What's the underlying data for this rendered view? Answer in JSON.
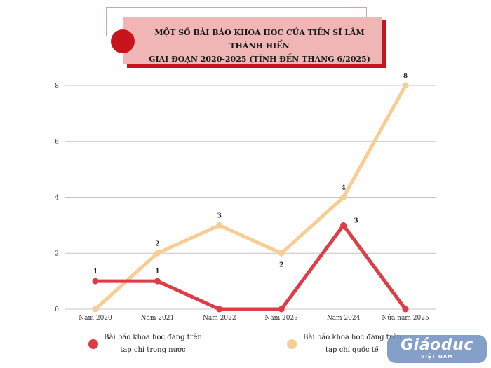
{
  "title": {
    "line1": "MỘT SỐ BÀI BÁO KHOA HỌC CỦA TIẾN SĨ LÂM THÀNH HIỂN",
    "line2": "GIAI ĐOẠN 2020-2025 (TÍNH ĐẾN THÁNG 6/2025)"
  },
  "colors": {
    "domestic": "#de3c47",
    "international": "#f7cd94",
    "grid": "#c4c4c4",
    "title_bg": "#f0b6b6",
    "accent": "#c7141d"
  },
  "chart_data": {
    "type": "line",
    "title": "MỘT SỐ BÀI BÁO KHOA HỌC CỦA TIẾN SĨ LÂM THÀNH HIỂN GIAI ĐOẠN 2020-2025 (TÍNH ĐẾN THÁNG 6/2025)",
    "categories": [
      "Năm 2020",
      "Năm 2021",
      "Năm 2022",
      "Năm 2023",
      "Năm 2024",
      "Nửa năm 2025"
    ],
    "ylim": [
      0,
      8
    ],
    "yticks": [
      0,
      2,
      4,
      6,
      8
    ],
    "grid": true,
    "legend_position": "bottom",
    "series": [
      {
        "name": "Bài báo khoa học đăng trên tạp chí trong nước",
        "values": [
          1,
          1,
          0,
          0,
          3,
          0
        ],
        "labels": [
          "1",
          "1",
          "",
          "",
          "3",
          ""
        ]
      },
      {
        "name": "Bài báo khoa học đăng trên tạp chí quốc tế",
        "values": [
          0,
          2,
          3,
          2,
          4,
          8
        ],
        "labels": [
          "",
          "2",
          "3",
          "2",
          "4",
          "8"
        ]
      }
    ]
  },
  "legend": {
    "domestic": {
      "line1": "Bài báo khoa học đăng trên",
      "line2": "tạp chí trong nước"
    },
    "international": {
      "line1": "Bài báo khoa học đăng trên",
      "line2": "tạp chí quốc tế"
    }
  },
  "watermark": {
    "main": "Giáoduc",
    "sub": "VIỆT NAM"
  }
}
